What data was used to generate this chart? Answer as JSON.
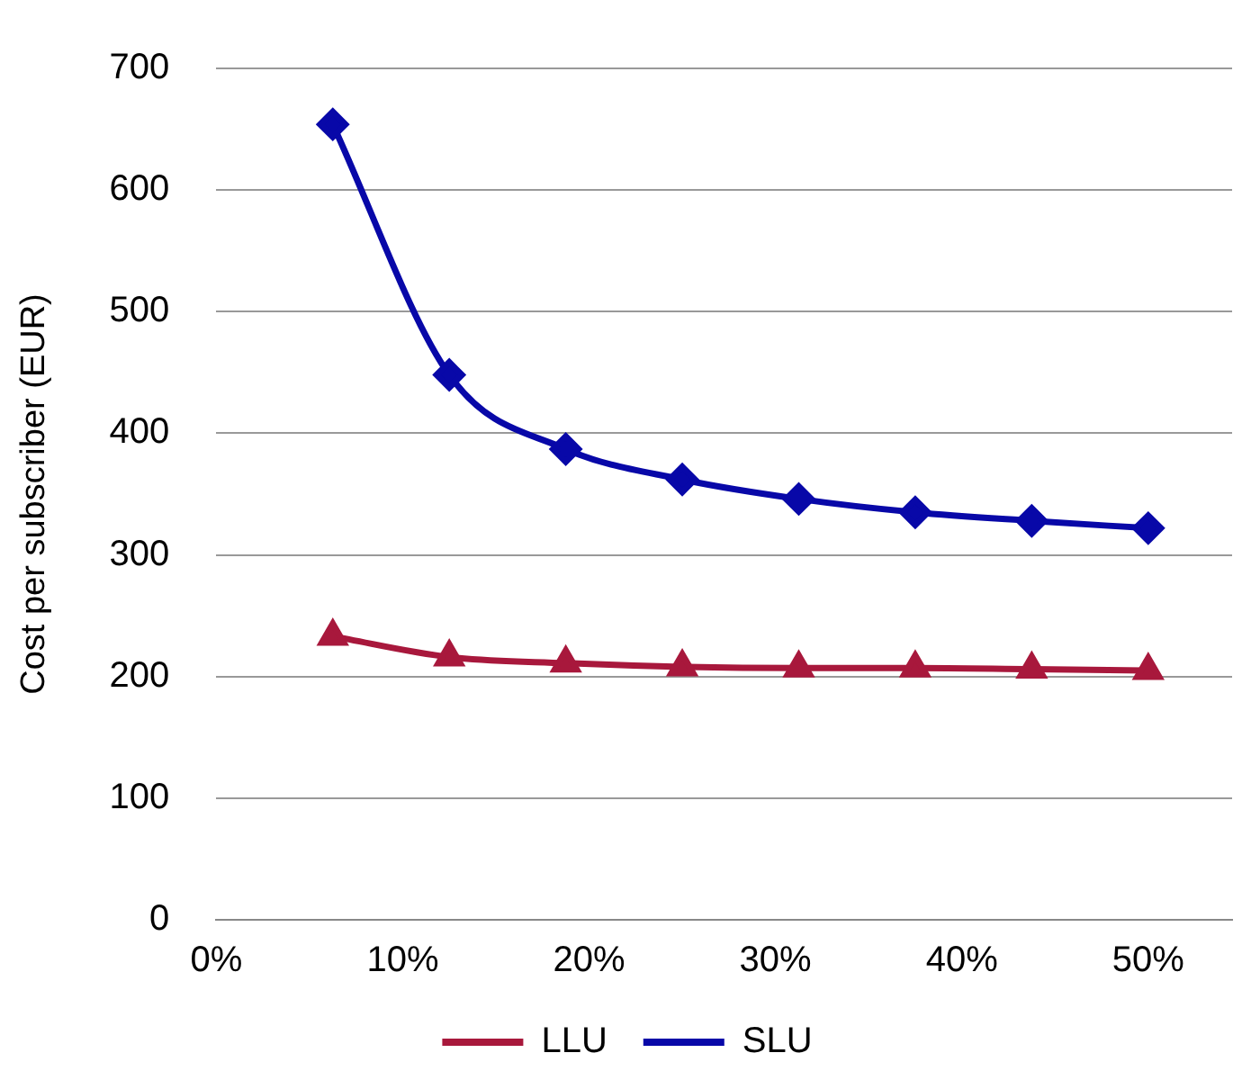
{
  "chart_data": {
    "type": "line",
    "ylabel": "Cost per subscriber (EUR)",
    "x": [
      6.25,
      12.5,
      18.75,
      25,
      31.25,
      37.5,
      43.75,
      50
    ],
    "series": [
      {
        "name": "LLU",
        "color": "#a8183c",
        "marker": "triangle",
        "values": [
          233,
          216,
          211,
          208,
          207,
          207,
          206,
          205
        ]
      },
      {
        "name": "SLU",
        "color": "#0808a8",
        "marker": "diamond",
        "values": [
          654,
          448,
          387,
          362,
          346,
          335,
          328,
          322
        ]
      }
    ],
    "xlim": [
      0,
      54.5
    ],
    "xticks": [
      {
        "value": 0,
        "label": "0%"
      },
      {
        "value": 10,
        "label": "10%"
      },
      {
        "value": 20,
        "label": "20%"
      },
      {
        "value": 30,
        "label": "30%"
      },
      {
        "value": 40,
        "label": "40%"
      },
      {
        "value": 50,
        "label": "50%"
      }
    ],
    "ylim": [
      0,
      700
    ],
    "yticks": [
      0,
      100,
      200,
      300,
      400,
      500,
      600,
      700
    ],
    "grid": "y",
    "legend": "bottom",
    "line_style": "solid"
  }
}
